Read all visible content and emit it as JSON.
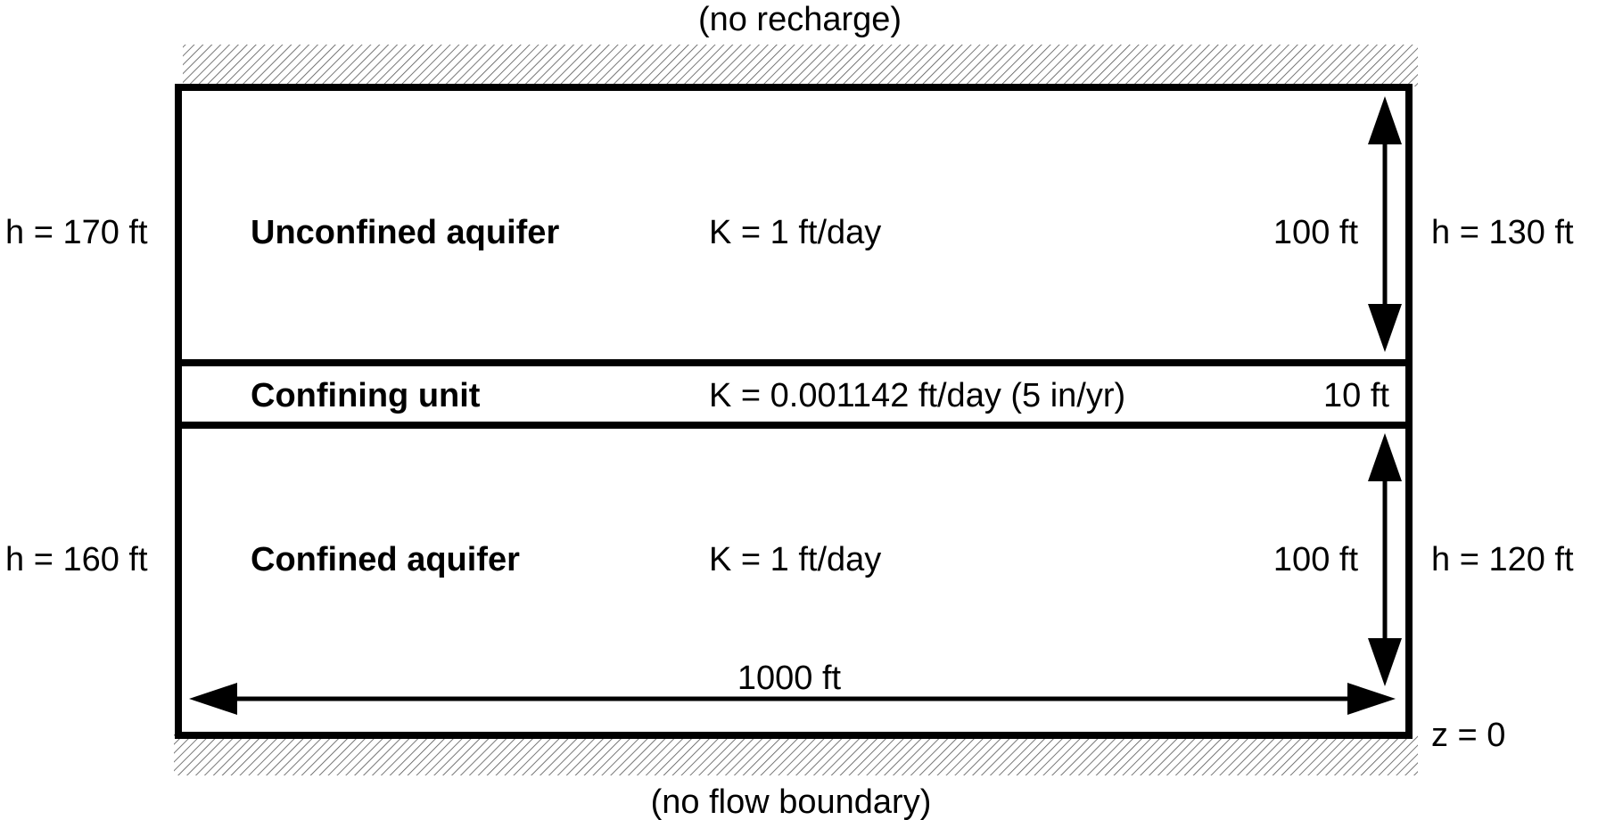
{
  "boundaries": {
    "top": "(no recharge)",
    "bottom": "(no flow boundary)"
  },
  "heads": {
    "upper_left": "h = 170 ft",
    "upper_right": "h = 130 ft",
    "lower_left": "h = 160 ft",
    "lower_right": "h = 120 ft"
  },
  "layers": {
    "unconfined": {
      "name": "Unconfined aquifer",
      "k": "K = 1 ft/day",
      "thickness": "100 ft"
    },
    "confining": {
      "name": "Confining unit",
      "k": "K = 0.001142 ft/day (5 in/yr)",
      "thickness": "10 ft"
    },
    "confined": {
      "name": "Confined aquifer",
      "k": "K = 1 ft/day",
      "thickness": "100 ft"
    }
  },
  "length": "1000 ft",
  "datum": "z = 0",
  "colors": {
    "line": "#000000",
    "hatch": "#555555",
    "background": "#ffffff"
  }
}
